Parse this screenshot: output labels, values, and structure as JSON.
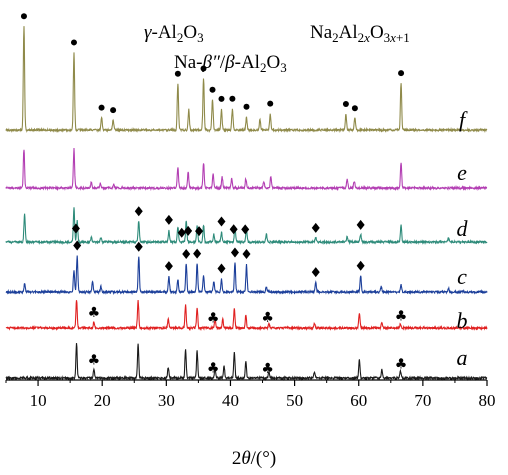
{
  "chart_data": {
    "type": "line",
    "title": "",
    "xlabel": "2θ/(°)",
    "ylabel": "",
    "xlim": [
      5,
      80
    ],
    "x_ticks": [
      10,
      20,
      30,
      40,
      50,
      60,
      70,
      80
    ],
    "grid": false,
    "legend_placement": "top",
    "legend": [
      {
        "marker": "club",
        "label": "γ-Al₂O₃"
      },
      {
        "marker": "diamond",
        "label": "Na₂Al₂ₓO₃ₓ₊₁"
      },
      {
        "marker": "dot",
        "label": "Na-β″/β-Al₂O₃"
      }
    ],
    "series": [
      {
        "label": "a",
        "color": "#1a1a1a",
        "peaks": [
          {
            "x": 16.0,
            "h": 1.0
          },
          {
            "x": 18.7,
            "h": 0.25
          },
          {
            "x": 25.6,
            "h": 1.0
          },
          {
            "x": 30.3,
            "h": 0.3
          },
          {
            "x": 33.0,
            "h": 0.85
          },
          {
            "x": 34.8,
            "h": 0.8
          },
          {
            "x": 37.6,
            "h": 0.3
          },
          {
            "x": 39.0,
            "h": 0.35
          },
          {
            "x": 40.6,
            "h": 0.75
          },
          {
            "x": 42.4,
            "h": 0.5
          },
          {
            "x": 46.0,
            "h": 0.2
          },
          {
            "x": 53.1,
            "h": 0.2
          },
          {
            "x": 60.1,
            "h": 0.55
          },
          {
            "x": 63.6,
            "h": 0.25
          },
          {
            "x": 66.5,
            "h": 0.2
          }
        ],
        "markers": [
          {
            "x": 18.7,
            "type": "club"
          },
          {
            "x": 37.3,
            "type": "club"
          },
          {
            "x": 45.8,
            "type": "club"
          },
          {
            "x": 66.6,
            "type": "club"
          }
        ]
      },
      {
        "label": "b",
        "color": "#e02020",
        "peaks": [
          {
            "x": 16.0,
            "h": 1.0
          },
          {
            "x": 18.7,
            "h": 0.2
          },
          {
            "x": 25.6,
            "h": 1.0
          },
          {
            "x": 30.3,
            "h": 0.3
          },
          {
            "x": 33.0,
            "h": 0.85
          },
          {
            "x": 34.8,
            "h": 0.75
          },
          {
            "x": 37.6,
            "h": 0.3
          },
          {
            "x": 38.8,
            "h": 0.3
          },
          {
            "x": 40.6,
            "h": 0.7
          },
          {
            "x": 42.4,
            "h": 0.45
          },
          {
            "x": 46.0,
            "h": 0.15
          },
          {
            "x": 53.1,
            "h": 0.15
          },
          {
            "x": 60.1,
            "h": 0.55
          },
          {
            "x": 63.6,
            "h": 0.2
          },
          {
            "x": 66.5,
            "h": 0.15
          }
        ],
        "markers": [
          {
            "x": 18.7,
            "type": "club"
          },
          {
            "x": 37.3,
            "type": "club"
          },
          {
            "x": 45.8,
            "type": "club"
          },
          {
            "x": 66.6,
            "type": "club"
          }
        ]
      },
      {
        "label": "c",
        "color": "#1c3f9a",
        "peaks": [
          {
            "x": 7.9,
            "h": 0.25
          },
          {
            "x": 15.6,
            "h": 0.6
          },
          {
            "x": 16.1,
            "h": 1.0
          },
          {
            "x": 18.5,
            "h": 0.3
          },
          {
            "x": 19.8,
            "h": 0.15
          },
          {
            "x": 25.7,
            "h": 1.0
          },
          {
            "x": 30.4,
            "h": 0.45
          },
          {
            "x": 31.8,
            "h": 0.35
          },
          {
            "x": 33.1,
            "h": 0.8
          },
          {
            "x": 34.8,
            "h": 0.8
          },
          {
            "x": 35.8,
            "h": 0.45
          },
          {
            "x": 37.4,
            "h": 0.3
          },
          {
            "x": 38.6,
            "h": 0.35
          },
          {
            "x": 40.7,
            "h": 0.8
          },
          {
            "x": 42.5,
            "h": 0.75
          },
          {
            "x": 45.6,
            "h": 0.15
          },
          {
            "x": 53.3,
            "h": 0.25
          },
          {
            "x": 60.3,
            "h": 0.45
          },
          {
            "x": 63.5,
            "h": 0.15
          },
          {
            "x": 66.6,
            "h": 0.2
          },
          {
            "x": 74.0,
            "h": 0.1
          }
        ],
        "markers": [
          {
            "x": 16.1,
            "type": "diamond"
          },
          {
            "x": 25.7,
            "type": "diamond"
          },
          {
            "x": 30.4,
            "type": "diamond"
          },
          {
            "x": 33.1,
            "type": "diamond"
          },
          {
            "x": 34.8,
            "type": "diamond"
          },
          {
            "x": 38.6,
            "type": "diamond"
          },
          {
            "x": 40.7,
            "type": "diamond"
          },
          {
            "x": 42.5,
            "type": "diamond"
          },
          {
            "x": 53.3,
            "type": "diamond"
          },
          {
            "x": 60.3,
            "type": "diamond"
          }
        ]
      },
      {
        "label": "d",
        "color": "#2e8b7a",
        "peaks": [
          {
            "x": 7.9,
            "h": 0.75
          },
          {
            "x": 15.6,
            "h": 0.9
          },
          {
            "x": 16.1,
            "h": 0.55
          },
          {
            "x": 18.3,
            "h": 0.12
          },
          {
            "x": 19.8,
            "h": 0.12
          },
          {
            "x": 25.7,
            "h": 0.55
          },
          {
            "x": 30.4,
            "h": 0.3
          },
          {
            "x": 31.8,
            "h": 0.4
          },
          {
            "x": 33.1,
            "h": 0.55
          },
          {
            "x": 34.8,
            "h": 0.45
          },
          {
            "x": 35.8,
            "h": 0.45
          },
          {
            "x": 37.4,
            "h": 0.2
          },
          {
            "x": 38.6,
            "h": 0.25
          },
          {
            "x": 40.7,
            "h": 0.4
          },
          {
            "x": 42.5,
            "h": 0.35
          },
          {
            "x": 45.6,
            "h": 0.2
          },
          {
            "x": 53.3,
            "h": 0.1
          },
          {
            "x": 58.2,
            "h": 0.15
          },
          {
            "x": 60.3,
            "h": 0.2
          },
          {
            "x": 66.6,
            "h": 0.45
          },
          {
            "x": 74.0,
            "h": 0.1
          }
        ],
        "markers": [
          {
            "x": 15.9,
            "type": "diamond"
          },
          {
            "x": 25.7,
            "type": "diamond"
          },
          {
            "x": 30.4,
            "type": "diamond"
          },
          {
            "x": 32.4,
            "type": "diamond"
          },
          {
            "x": 33.4,
            "type": "diamond"
          },
          {
            "x": 35.1,
            "type": "diamond"
          },
          {
            "x": 38.6,
            "type": "diamond"
          },
          {
            "x": 40.5,
            "type": "diamond"
          },
          {
            "x": 42.3,
            "type": "diamond"
          },
          {
            "x": 53.3,
            "type": "diamond"
          },
          {
            "x": 60.3,
            "type": "diamond"
          }
        ]
      },
      {
        "label": "e",
        "color": "#b33fb3",
        "peaks": [
          {
            "x": 7.8,
            "h": 0.85
          },
          {
            "x": 15.6,
            "h": 0.85
          },
          {
            "x": 18.3,
            "h": 0.12
          },
          {
            "x": 19.7,
            "h": 0.1
          },
          {
            "x": 21.8,
            "h": 0.08
          },
          {
            "x": 31.8,
            "h": 0.45
          },
          {
            "x": 33.4,
            "h": 0.35
          },
          {
            "x": 35.8,
            "h": 0.55
          },
          {
            "x": 37.3,
            "h": 0.3
          },
          {
            "x": 38.7,
            "h": 0.25
          },
          {
            "x": 40.2,
            "h": 0.2
          },
          {
            "x": 42.4,
            "h": 0.2
          },
          {
            "x": 45.2,
            "h": 0.15
          },
          {
            "x": 46.3,
            "h": 0.25
          },
          {
            "x": 58.2,
            "h": 0.2
          },
          {
            "x": 59.3,
            "h": 0.15
          },
          {
            "x": 66.6,
            "h": 0.55
          }
        ],
        "markers": []
      },
      {
        "label": "f",
        "color": "#8f8a4a",
        "peaks": [
          {
            "x": 7.8,
            "h": 1.0
          },
          {
            "x": 15.6,
            "h": 0.75
          },
          {
            "x": 19.9,
            "h": 0.12
          },
          {
            "x": 21.7,
            "h": 0.1
          },
          {
            "x": 31.8,
            "h": 0.45
          },
          {
            "x": 33.5,
            "h": 0.2
          },
          {
            "x": 35.8,
            "h": 0.5
          },
          {
            "x": 37.2,
            "h": 0.3
          },
          {
            "x": 38.6,
            "h": 0.2
          },
          {
            "x": 40.3,
            "h": 0.2
          },
          {
            "x": 42.5,
            "h": 0.12
          },
          {
            "x": 44.6,
            "h": 0.1
          },
          {
            "x": 46.2,
            "h": 0.15
          },
          {
            "x": 58.0,
            "h": 0.15
          },
          {
            "x": 59.4,
            "h": 0.12
          },
          {
            "x": 66.6,
            "h": 0.45
          }
        ],
        "markers": [
          {
            "x": 7.8,
            "type": "dot"
          },
          {
            "x": 15.6,
            "type": "dot"
          },
          {
            "x": 19.9,
            "type": "dot"
          },
          {
            "x": 21.7,
            "type": "dot"
          },
          {
            "x": 31.8,
            "type": "dot"
          },
          {
            "x": 35.8,
            "type": "dot"
          },
          {
            "x": 37.2,
            "type": "dot"
          },
          {
            "x": 38.6,
            "type": "dot"
          },
          {
            "x": 40.3,
            "type": "dot"
          },
          {
            "x": 42.5,
            "type": "dot"
          },
          {
            "x": 46.2,
            "type": "dot"
          },
          {
            "x": 58.0,
            "type": "dot"
          },
          {
            "x": 59.4,
            "type": "dot"
          },
          {
            "x": 66.6,
            "type": "dot"
          }
        ]
      }
    ]
  }
}
